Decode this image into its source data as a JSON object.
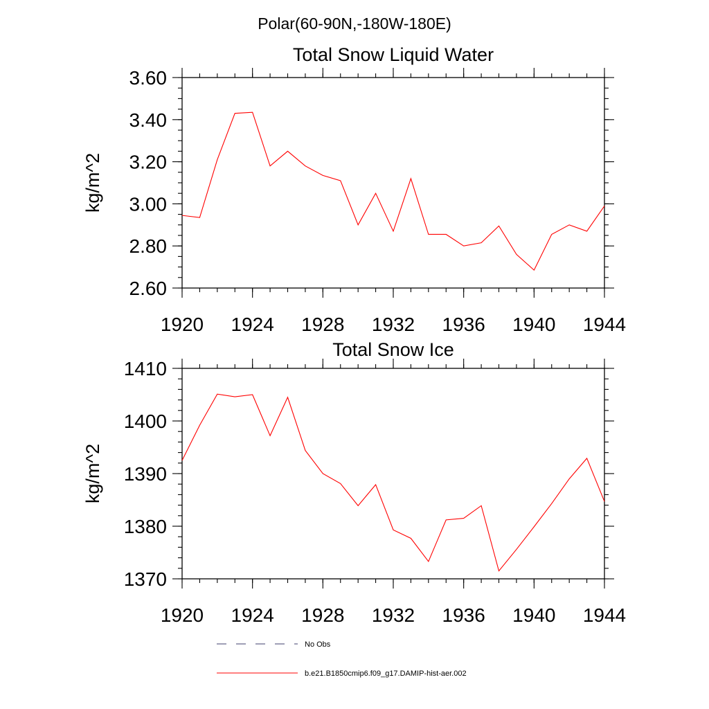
{
  "figure_title": "Polar(60-90N,-180W-180E)",
  "chart_data": [
    {
      "type": "line",
      "title": "Total Snow Liquid Water",
      "xlabel": "",
      "ylabel": "kg/m^2",
      "xlim": [
        1920,
        1944
      ],
      "ylim": [
        2.6,
        3.6
      ],
      "x_ticks": [
        1920,
        1924,
        1928,
        1932,
        1936,
        1940,
        1944
      ],
      "x_tick_labels": [
        "1920",
        "1924",
        "1928",
        "1932",
        "1936",
        "1940",
        "1944"
      ],
      "y_ticks": [
        2.6,
        2.8,
        3.0,
        3.2,
        3.4,
        3.6
      ],
      "y_tick_labels": [
        "2.60",
        "2.80",
        "3.00",
        "3.20",
        "3.40",
        "3.60"
      ],
      "y_minor_step": 0.05,
      "x_minor_step": 1,
      "grid": false,
      "series": [
        {
          "name": "b.e21.B1850cmip6.f09_g17.DAMIP-hist-aer.002",
          "color": "#ff0000",
          "x": [
            1920,
            1921,
            1922,
            1923,
            1924,
            1925,
            1926,
            1927,
            1928,
            1929,
            1930,
            1931,
            1932,
            1933,
            1934,
            1935,
            1936,
            1937,
            1938,
            1939,
            1940,
            1941,
            1942,
            1943,
            1944
          ],
          "y": [
            2.945,
            2.935,
            3.21,
            3.43,
            3.435,
            3.18,
            3.25,
            3.18,
            3.135,
            3.11,
            2.9,
            3.05,
            2.87,
            3.12,
            2.855,
            2.855,
            2.8,
            2.815,
            2.895,
            2.76,
            2.685,
            2.855,
            2.9,
            2.87,
            2.99
          ]
        }
      ]
    },
    {
      "type": "line",
      "title": "Total Snow Ice",
      "xlabel": "",
      "ylabel": "kg/m^2",
      "xlim": [
        1920,
        1944
      ],
      "ylim": [
        1370,
        1410
      ],
      "x_ticks": [
        1920,
        1924,
        1928,
        1932,
        1936,
        1940,
        1944
      ],
      "x_tick_labels": [
        "1920",
        "1924",
        "1928",
        "1932",
        "1936",
        "1940",
        "1944"
      ],
      "y_ticks": [
        1370,
        1380,
        1390,
        1400,
        1410
      ],
      "y_tick_labels": [
        "1370",
        "1380",
        "1390",
        "1400",
        "1410"
      ],
      "y_minor_step": 2,
      "x_minor_step": 1,
      "grid": false,
      "series": [
        {
          "name": "b.e21.B1850cmip6.f09_g17.DAMIP-hist-aer.002",
          "color": "#ff0000",
          "x": [
            1920,
            1921,
            1922,
            1923,
            1924,
            1925,
            1926,
            1927,
            1928,
            1929,
            1930,
            1931,
            1932,
            1933,
            1934,
            1935,
            1936,
            1937,
            1938,
            1939,
            1940,
            1941,
            1942,
            1943,
            1944
          ],
          "y": [
            1392.5,
            1399.2,
            1405.1,
            1404.6,
            1405.0,
            1397.2,
            1404.5,
            1394.4,
            1390.0,
            1388.1,
            1383.9,
            1387.9,
            1379.3,
            1377.7,
            1373.3,
            1381.2,
            1381.5,
            1383.9,
            1371.5,
            1375.6,
            1379.9,
            1384.3,
            1389.0,
            1392.9,
            1384.7
          ]
        }
      ]
    }
  ],
  "legend": {
    "placement": "bottom-center",
    "entries": [
      {
        "label": "No Obs",
        "style": "dashed",
        "color": "#3d3d6b"
      },
      {
        "label": "b.e21.B1850cmip6.f09_g17.DAMIP-hist-aer.002",
        "style": "solid",
        "color": "#ff0000"
      }
    ]
  }
}
